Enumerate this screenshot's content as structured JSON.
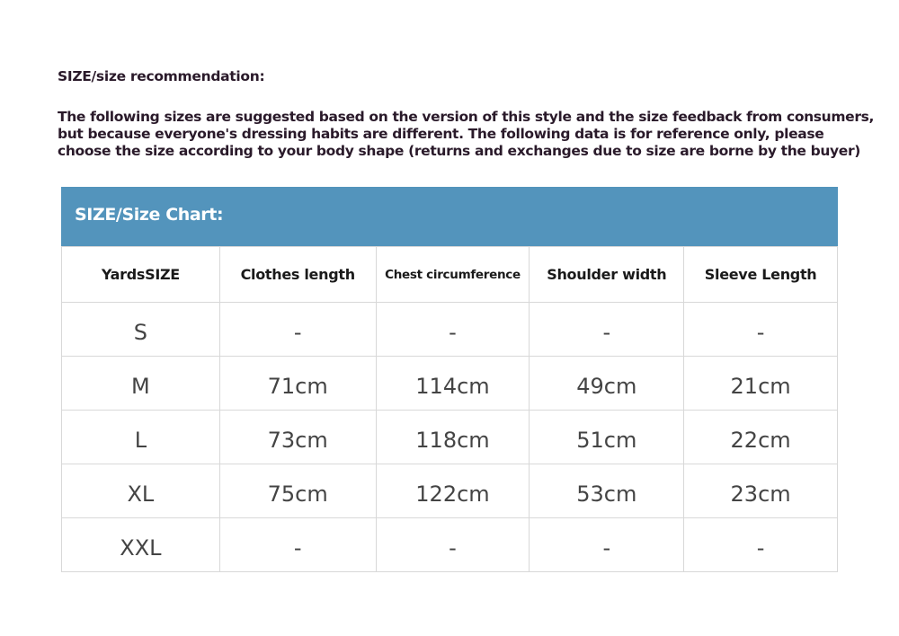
{
  "heading": "SIZE/size recommendation:",
  "paragraph_lines": [
    "The following sizes are suggested based on the version of this style and the size feedback from consumers,",
    "but because everyone's dressing habits are different. The following data is for reference only, please",
    "choose the size according to your body shape (returns and exchanges due to size are borne by the buyer)"
  ],
  "chart_title": "SIZE/Size Chart:",
  "accent_color": "#5394bc",
  "columns": [
    "YardsSIZE",
    "Clothes length",
    "Chest circumference",
    "Shoulder width",
    "Sleeve Length"
  ],
  "rows": [
    [
      "S",
      "-",
      "-",
      "-",
      "-"
    ],
    [
      "M",
      "71cm",
      "114cm",
      "49cm",
      "21cm"
    ],
    [
      "L",
      "73cm",
      "118cm",
      "51cm",
      "22cm"
    ],
    [
      "XL",
      "75cm",
      "122cm",
      "53cm",
      "23cm"
    ],
    [
      "XXL",
      "-",
      "-",
      "-",
      "-"
    ]
  ]
}
